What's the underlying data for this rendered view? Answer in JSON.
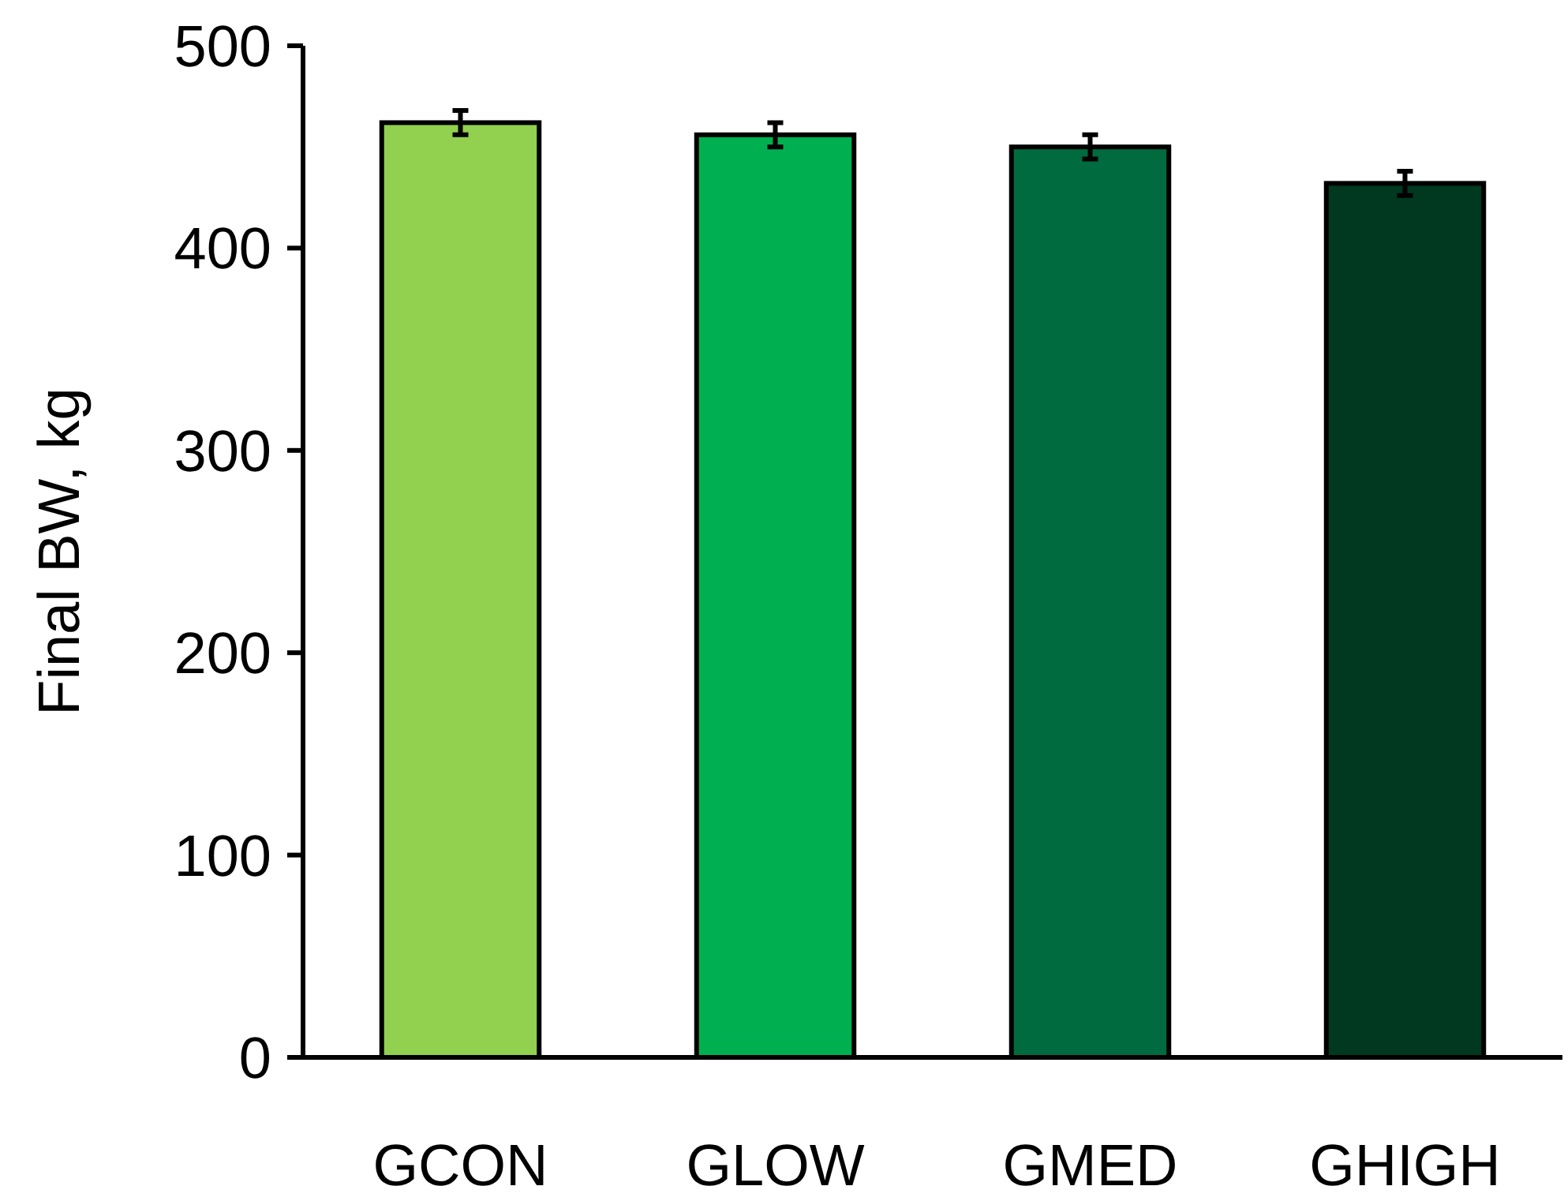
{
  "chart_data": {
    "type": "bar",
    "ylabel": "Final BW, kg",
    "categories": [
      "GCON",
      "GLOW",
      "GMED",
      "GHIGH"
    ],
    "values": [
      462,
      456,
      450,
      432
    ],
    "errors": [
      6,
      6,
      6,
      6
    ],
    "colors": [
      "#92d050",
      "#00b050",
      "#006b3f",
      "#003820"
    ],
    "ylim": [
      0,
      500
    ],
    "yticks": [
      0,
      100,
      200,
      300,
      400,
      500
    ],
    "grid": false
  }
}
